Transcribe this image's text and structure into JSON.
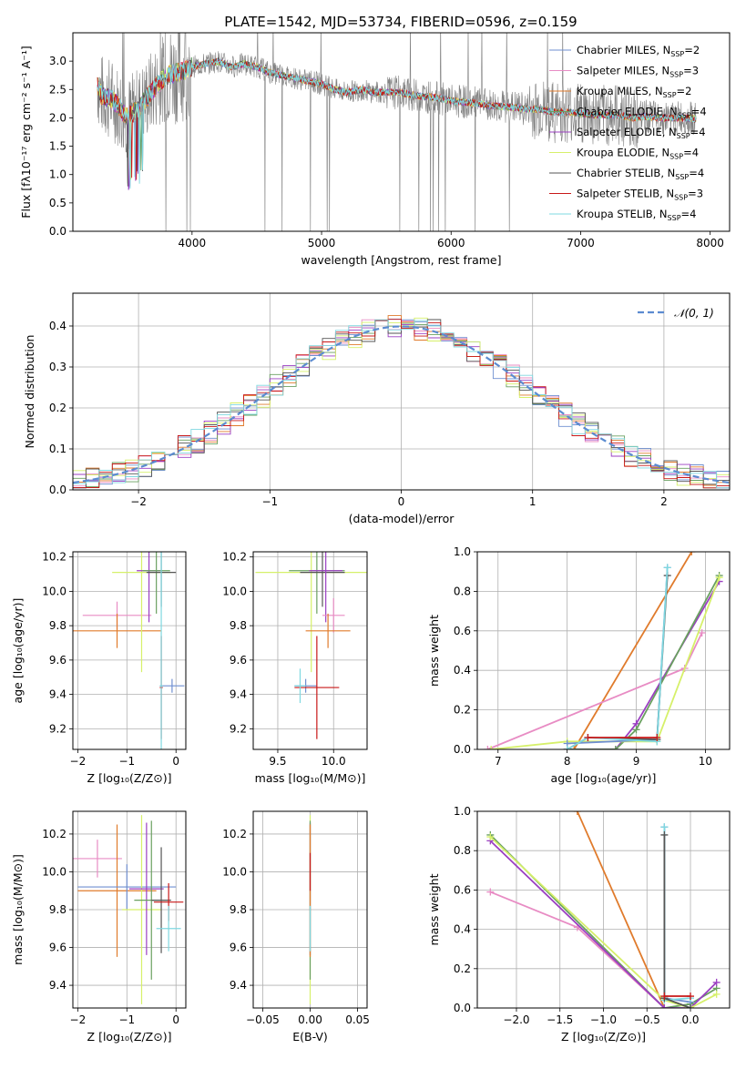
{
  "figure": {
    "title": "PLATE=1542, MJD=53734, FIBERID=0596, z=0.159"
  },
  "colors": {
    "Chabrier MILES": "#6f8fd0",
    "Salpeter MILES": "#e88cc4",
    "Kroupa MILES": "#e07b2c",
    "Chabrier ELODIE": "#6aa060",
    "Salpeter ELODIE": "#9b3fc2",
    "Kroupa ELODIE": "#d6f06a",
    "Chabrier STELIB": "#555555",
    "Salpeter STELIB": "#c81818",
    "Kroupa STELIB": "#7fd8e0",
    "data": "#808080",
    "normal": "#5b8bd0"
  },
  "chart_data": [
    {
      "type": "line",
      "id": "spectrum",
      "xlabel": "wavelength [Angstrom, rest frame]",
      "ylabel": "Flux [fλ10⁻¹⁷ erg cm⁻² s⁻¹ A⁻¹]",
      "xlim": [
        3080,
        8150
      ],
      "ylim": [
        0,
        3.5
      ],
      "xticks": [
        4000,
        5000,
        6000,
        7000,
        8000
      ],
      "yticks": [
        "0.0",
        "0.5",
        "1.0",
        "1.5",
        "2.0",
        "2.5",
        "3.0"
      ],
      "legend_position": "top-right",
      "legend": [
        {
          "model": "Chabrier MILES",
          "prefix": "Chabrier MILES, N",
          "sub": "SSP",
          "suffix": "=2"
        },
        {
          "model": "Salpeter MILES",
          "prefix": "Salpeter MILES, N",
          "sub": "SSP",
          "suffix": "=3"
        },
        {
          "model": "Kroupa MILES",
          "prefix": "Kroupa MILES, N",
          "sub": "SSP",
          "suffix": "=2"
        },
        {
          "model": "Chabrier ELODIE",
          "prefix": "Chabrier ELODIE, N",
          "sub": "SSP",
          "suffix": "=4"
        },
        {
          "model": "Salpeter ELODIE",
          "prefix": "Salpeter ELODIE, N",
          "sub": "SSP",
          "suffix": "=4"
        },
        {
          "model": "Kroupa ELODIE",
          "prefix": "Kroupa ELODIE, N",
          "sub": "SSP",
          "suffix": "=4"
        },
        {
          "model": "Chabrier STELIB",
          "prefix": "Chabrier STELIB, N",
          "sub": "SSP",
          "suffix": "=4"
        },
        {
          "model": "Salpeter STELIB",
          "prefix": "Salpeter STELIB, N",
          "sub": "SSP",
          "suffix": "=3"
        },
        {
          "model": "Kroupa STELIB",
          "prefix": "Kroupa STELIB, N",
          "sub": "SSP",
          "suffix": "=4"
        }
      ],
      "model_continuum": [
        [
          3270,
          2.6
        ],
        [
          3300,
          2.4
        ],
        [
          3400,
          2.3
        ],
        [
          3500,
          2.0
        ],
        [
          3600,
          2.2
        ],
        [
          3700,
          2.5
        ],
        [
          3800,
          2.75
        ],
        [
          3900,
          2.8
        ],
        [
          4000,
          2.9
        ],
        [
          4100,
          2.95
        ],
        [
          4200,
          3.0
        ],
        [
          4300,
          2.9
        ],
        [
          4400,
          2.95
        ],
        [
          4500,
          2.9
        ],
        [
          4600,
          2.8
        ],
        [
          4700,
          2.75
        ],
        [
          4800,
          2.7
        ],
        [
          4900,
          2.65
        ],
        [
          5000,
          2.6
        ],
        [
          5100,
          2.5
        ],
        [
          5200,
          2.45
        ],
        [
          5300,
          2.5
        ],
        [
          5400,
          2.45
        ],
        [
          5500,
          2.45
        ],
        [
          5600,
          2.45
        ],
        [
          5700,
          2.4
        ],
        [
          5800,
          2.38
        ],
        [
          5900,
          2.35
        ],
        [
          6000,
          2.3
        ],
        [
          6100,
          2.28
        ],
        [
          6200,
          2.25
        ],
        [
          6300,
          2.22
        ],
        [
          6400,
          2.2
        ],
        [
          6500,
          2.18
        ],
        [
          6600,
          2.15
        ],
        [
          6700,
          2.15
        ],
        [
          6800,
          2.1
        ],
        [
          6900,
          2.1
        ],
        [
          7000,
          2.08
        ],
        [
          7100,
          2.05
        ],
        [
          7200,
          2.05
        ],
        [
          7300,
          2.05
        ],
        [
          7400,
          2.0
        ],
        [
          7500,
          2.02
        ],
        [
          7600,
          2.0
        ],
        [
          7700,
          2.0
        ],
        [
          7800,
          2.0
        ],
        [
          7890,
          1.98
        ]
      ]
    },
    {
      "type": "line",
      "id": "residual-histogram",
      "xlabel": "(data-model)/error",
      "ylabel": "Normed distribution",
      "xlim": [
        -2.5,
        2.5
      ],
      "ylim": [
        0,
        0.48
      ],
      "xticks": [
        "−2",
        "−1",
        "0",
        "1",
        "2"
      ],
      "yticks": [
        "0.0",
        "0.1",
        "0.2",
        "0.3",
        "0.4"
      ],
      "bin_width": 0.1,
      "legend_position": "top-right",
      "normal_curve": {
        "label": "𝒩(0, 1)",
        "mean": 0,
        "sigma": 1
      }
    },
    {
      "type": "scatter",
      "id": "z-vs-age",
      "xlabel": "Z [log₁₀(Z/Z⊙)]",
      "ylabel": "age  [log₁₀(age/yr)]",
      "xlim": [
        -2.1,
        0.2
      ],
      "ylim": [
        9.08,
        10.23
      ],
      "xticks": [
        "−2",
        "−1",
        "0"
      ],
      "yticks": [
        "9.2",
        "9.4",
        "9.6",
        "9.8",
        "10.0",
        "10.2"
      ],
      "points": [
        {
          "model": "Salpeter MILES",
          "x": -1.2,
          "y": 9.86,
          "xe": 0.7,
          "ye": 0.08
        },
        {
          "model": "Kroupa MILES",
          "x": -1.2,
          "y": 9.77,
          "xe": 0.9,
          "ye": 0.1
        },
        {
          "model": "Kroupa ELODIE",
          "x": -0.7,
          "y": 10.11,
          "xe": 0.6,
          "ye": 0.58
        },
        {
          "model": "Salpeter ELODIE",
          "x": -0.55,
          "y": 10.12,
          "xe": 0.25,
          "ye": 0.3
        },
        {
          "model": "Chabrier ELODIE",
          "x": -0.4,
          "y": 10.12,
          "xe": 0.28,
          "ye": 0.25
        },
        {
          "model": "Chabrier STELIB",
          "x": -0.3,
          "y": 10.11,
          "xe": 0.3,
          "ye": 0.2
        },
        {
          "model": "Chabrier MILES",
          "x": -0.08,
          "y": 9.45,
          "xe": 0.25,
          "ye": 0.04
        },
        {
          "model": "Salpeter STELIB",
          "x": -0.3,
          "y": 9.44,
          "xe": 0.03,
          "ye": 0.3
        },
        {
          "model": "Kroupa STELIB",
          "x": -0.3,
          "y": 9.45,
          "xe": 0.03,
          "ye": 0.85
        }
      ]
    },
    {
      "type": "scatter",
      "id": "mass-vs-age",
      "xlabel": "mass [log₁₀(M/M⊙)]",
      "ylabel": "",
      "xlim": [
        9.28,
        10.3
      ],
      "ylim": [
        9.08,
        10.23
      ],
      "xticks": [
        "9.5",
        "10.0"
      ],
      "yticks": [
        "9.2",
        "9.4",
        "9.6",
        "9.8",
        "10.0",
        "10.2"
      ],
      "points": [
        {
          "model": "Kroupa ELODIE",
          "x": 9.8,
          "y": 10.11,
          "xe": 0.5,
          "ye": 0.58
        },
        {
          "model": "Chabrier ELODIE",
          "x": 9.85,
          "y": 10.12,
          "xe": 0.25,
          "ye": 0.25
        },
        {
          "model": "Chabrier STELIB",
          "x": 9.9,
          "y": 10.11,
          "xe": 0.2,
          "ye": 0.2
        },
        {
          "model": "Salpeter ELODIE",
          "x": 9.93,
          "y": 10.12,
          "xe": 0.15,
          "ye": 0.3
        },
        {
          "model": "Salpeter MILES",
          "x": 10.0,
          "y": 9.86,
          "xe": 0.1,
          "ye": 0.1
        },
        {
          "model": "Kroupa MILES",
          "x": 9.95,
          "y": 9.77,
          "xe": 0.2,
          "ye": 0.1
        },
        {
          "model": "Chabrier MILES",
          "x": 9.75,
          "y": 9.45,
          "xe": 0.1,
          "ye": 0.04
        },
        {
          "model": "Salpeter STELIB",
          "x": 9.85,
          "y": 9.44,
          "xe": 0.2,
          "ye": 0.3
        },
        {
          "model": "Kroupa STELIB",
          "x": 9.7,
          "y": 9.45,
          "xe": 0.05,
          "ye": 0.1
        }
      ]
    },
    {
      "type": "line",
      "id": "age-mass-weight",
      "xlabel": "age  [log₁₀(age/yr)]",
      "ylabel": "mass weight",
      "xlim": [
        6.7,
        10.35
      ],
      "ylim": [
        0,
        1.0
      ],
      "xticks": [
        "7",
        "8",
        "9",
        "10"
      ],
      "yticks": [
        "0.0",
        "0.2",
        "0.4",
        "0.6",
        "0.8",
        "1.0"
      ],
      "series": [
        {
          "model": "Kroupa MILES",
          "points": [
            [
              8.1,
              0.0
            ],
            [
              9.8,
              1.0
            ]
          ]
        },
        {
          "model": "Salpeter MILES",
          "points": [
            [
              6.85,
              0.0
            ],
            [
              9.7,
              0.41
            ],
            [
              9.95,
              0.59
            ]
          ]
        },
        {
          "model": "Salpeter ELODIE",
          "points": [
            [
              8.0,
              0.0
            ],
            [
              8.7,
              0.0
            ],
            [
              9.0,
              0.13
            ],
            [
              10.2,
              0.85
            ]
          ]
        },
        {
          "model": "Chabrier ELODIE",
          "points": [
            [
              8.0,
              0.0
            ],
            [
              8.7,
              0.0
            ],
            [
              9.0,
              0.1
            ],
            [
              10.2,
              0.88
            ]
          ]
        },
        {
          "model": "Kroupa ELODIE",
          "points": [
            [
              6.9,
              0.0
            ],
            [
              8.0,
              0.04
            ],
            [
              9.3,
              0.04
            ],
            [
              10.2,
              0.87
            ]
          ]
        },
        {
          "model": "Chabrier MILES",
          "points": [
            [
              8.0,
              0.03
            ],
            [
              9.3,
              0.05
            ],
            [
              9.45,
              0.92
            ]
          ]
        },
        {
          "model": "Chabrier STELIB",
          "points": [
            [
              8.0,
              0.0
            ],
            [
              8.3,
              0.06
            ],
            [
              9.3,
              0.05
            ],
            [
              9.45,
              0.88
            ]
          ]
        },
        {
          "model": "Kroupa STELIB",
          "points": [
            [
              8.0,
              0.0
            ],
            [
              8.3,
              0.06
            ],
            [
              9.3,
              0.04
            ],
            [
              9.45,
              0.92
            ]
          ]
        },
        {
          "model": "Salpeter STELIB",
          "points": [
            [
              8.3,
              0.06
            ],
            [
              9.3,
              0.06
            ]
          ]
        }
      ]
    },
    {
      "type": "scatter",
      "id": "z-vs-mass",
      "xlabel": "Z [log₁₀(Z/Z⊙)]",
      "ylabel": "mass [log₁₀(M/M⊙)]",
      "xlim": [
        -2.1,
        0.2
      ],
      "ylim": [
        9.28,
        10.32
      ],
      "xticks": [
        "−2",
        "−1",
        "0"
      ],
      "yticks": [
        "9.4",
        "9.6",
        "9.8",
        "10.0",
        "10.2"
      ],
      "points": [
        {
          "model": "Salpeter MILES",
          "x": -1.6,
          "y": 10.07,
          "xe": 0.5,
          "ye": 0.1
        },
        {
          "model": "Kroupa MILES",
          "x": -1.2,
          "y": 9.9,
          "xe": 0.8,
          "ye": 0.35
        },
        {
          "model": "Chabrier MILES",
          "x": -1.0,
          "y": 9.92,
          "xe": 1.0,
          "ye": 0.12
        },
        {
          "model": "Kroupa ELODIE",
          "x": -0.7,
          "y": 9.8,
          "xe": 0.4,
          "ye": 0.5
        },
        {
          "model": "Salpeter ELODIE",
          "x": -0.6,
          "y": 9.91,
          "xe": 0.35,
          "ye": 0.35
        },
        {
          "model": "Chabrier ELODIE",
          "x": -0.5,
          "y": 9.85,
          "xe": 0.35,
          "ye": 0.42
        },
        {
          "model": "Chabrier STELIB",
          "x": -0.3,
          "y": 9.85,
          "xe": 0.2,
          "ye": 0.28
        },
        {
          "model": "Salpeter STELIB",
          "x": -0.15,
          "y": 9.84,
          "xe": 0.3,
          "ye": 0.1
        },
        {
          "model": "Kroupa STELIB",
          "x": -0.15,
          "y": 9.7,
          "xe": 0.25,
          "ye": 0.12
        }
      ]
    },
    {
      "type": "scatter",
      "id": "ebv-vs-mass",
      "xlabel": "E(B-V)",
      "ylabel": "",
      "xlim": [
        -0.06,
        0.06
      ],
      "ylim": [
        9.28,
        10.32
      ],
      "xticks": [
        "−0.05",
        "0.00",
        "0.05"
      ],
      "yticks": [
        "9.4",
        "9.6",
        "9.8",
        "10.0",
        "10.2"
      ],
      "points": [
        {
          "model": "Kroupa ELODIE",
          "x": 0.0,
          "y": 9.8,
          "xe": 0.0,
          "ye": 0.5
        },
        {
          "model": "Salpeter ELODIE",
          "x": 0.0,
          "y": 9.91,
          "xe": 0.0,
          "ye": 0.35
        },
        {
          "model": "Chabrier ELODIE",
          "x": 0.0,
          "y": 9.85,
          "xe": 0.0,
          "ye": 0.42
        },
        {
          "model": "Kroupa MILES",
          "x": 0.0,
          "y": 9.9,
          "xe": 0.0,
          "ye": 0.35
        },
        {
          "model": "Salpeter STELIB",
          "x": 0.0,
          "y": 10.0,
          "xe": 0.0,
          "ye": 0.1
        },
        {
          "model": "Kroupa STELIB",
          "x": 0.0,
          "y": 9.7,
          "xe": 0.0,
          "ye": 0.12
        }
      ]
    },
    {
      "type": "line",
      "id": "z-mass-weight",
      "xlabel": "Z [log₁₀(Z/Z⊙)]",
      "ylabel": "mass weight",
      "xlim": [
        -2.45,
        0.45
      ],
      "ylim": [
        0,
        1.0
      ],
      "xticks": [
        "−2.0",
        "−1.5",
        "−1.0",
        "−0.5",
        "0.0"
      ],
      "yticks": [
        "0.0",
        "0.2",
        "0.4",
        "0.6",
        "0.8",
        "1.0"
      ],
      "series": [
        {
          "model": "Kroupa MILES",
          "points": [
            [
              -1.3,
              1.0
            ],
            [
              -0.3,
              0.0
            ]
          ]
        },
        {
          "model": "Salpeter MILES",
          "points": [
            [
              -2.3,
              0.59
            ],
            [
              -1.3,
              0.41
            ],
            [
              -0.3,
              0.0
            ]
          ]
        },
        {
          "model": "Chabrier ELODIE",
          "points": [
            [
              -2.3,
              0.88
            ],
            [
              -0.3,
              0.0
            ],
            [
              0.0,
              0.02
            ],
            [
              0.3,
              0.1
            ]
          ]
        },
        {
          "model": "Salpeter ELODIE",
          "points": [
            [
              -2.3,
              0.85
            ],
            [
              -0.3,
              0.0
            ],
            [
              0.0,
              0.0
            ],
            [
              0.3,
              0.13
            ]
          ]
        },
        {
          "model": "Kroupa ELODIE",
          "points": [
            [
              -2.3,
              0.87
            ],
            [
              -0.3,
              0.04
            ],
            [
              0.0,
              0.0
            ],
            [
              0.3,
              0.07
            ]
          ]
        },
        {
          "model": "Chabrier MILES",
          "points": [
            [
              -0.3,
              0.92
            ],
            [
              -0.3,
              0.05
            ],
            [
              0.0,
              0.03
            ]
          ]
        },
        {
          "model": "Kroupa STELIB",
          "points": [
            [
              -0.3,
              0.92
            ],
            [
              -0.3,
              0.04
            ],
            [
              0.0,
              0.05
            ]
          ]
        },
        {
          "model": "Chabrier STELIB",
          "points": [
            [
              -0.3,
              0.88
            ],
            [
              -0.3,
              0.05
            ],
            [
              0.0,
              0.0
            ]
          ]
        },
        {
          "model": "Salpeter STELIB",
          "points": [
            [
              -0.3,
              0.06
            ],
            [
              0.0,
              0.06
            ]
          ]
        }
      ]
    }
  ]
}
